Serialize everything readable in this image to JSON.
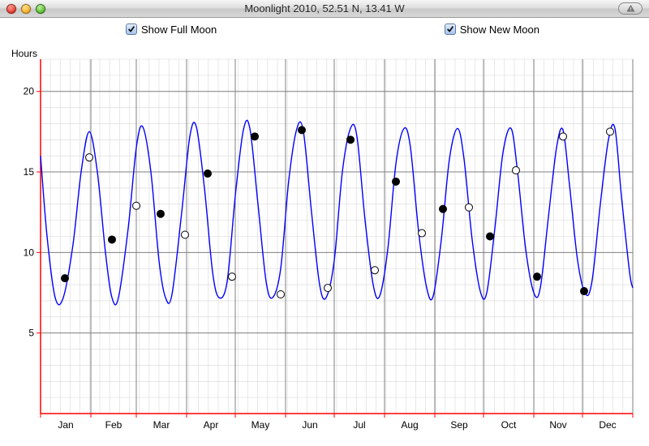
{
  "window": {
    "title": "Moonlight 2010,  52.51 N, 13.41 W"
  },
  "controls": {
    "full_moon": {
      "label": "Show Full Moon",
      "checked": true
    },
    "new_moon": {
      "label": "Show New Moon",
      "checked": true
    }
  },
  "chart": {
    "type": "line",
    "background_color": "#ffffff",
    "fine_grid_color": "#d8d8d8",
    "major_grid_color": "#808080",
    "axis_color": "#ff0000",
    "line_color": "#0000ff",
    "line_width": 1.4,
    "full_moon_marker": {
      "fill": "#000000",
      "stroke": "#000000",
      "r": 4.5
    },
    "new_moon_marker": {
      "fill": "#ffffff",
      "stroke": "#000000",
      "r": 4.5
    },
    "label_fontsize": 12,
    "label_color": "#000000",
    "y_axis_title": "Hours",
    "ylim": [
      0,
      22
    ],
    "y_ticks": [
      5,
      10,
      15,
      20
    ],
    "x_ticks_day": 15,
    "months": [
      "Jan",
      "Feb",
      "Mar",
      "Apr",
      "May",
      "Jun",
      "Jul",
      "Aug",
      "Sep",
      "Oct",
      "Nov",
      "Dec"
    ],
    "plot_left_day": 0,
    "plot_right_day": 365,
    "series": [
      {
        "d": 0,
        "h": 16.0
      },
      {
        "d": 4,
        "h": 11.0
      },
      {
        "d": 9,
        "h": 7.2
      },
      {
        "d": 14,
        "h": 7.2
      },
      {
        "d": 20,
        "h": 10.5
      },
      {
        "d": 25,
        "h": 15.0
      },
      {
        "d": 30,
        "h": 17.5
      },
      {
        "d": 35,
        "h": 15.0
      },
      {
        "d": 40,
        "h": 10.0
      },
      {
        "d": 44,
        "h": 7.2
      },
      {
        "d": 48,
        "h": 7.2
      },
      {
        "d": 54,
        "h": 11.5
      },
      {
        "d": 59,
        "h": 16.5
      },
      {
        "d": 63,
        "h": 17.8
      },
      {
        "d": 68,
        "h": 15.0
      },
      {
        "d": 73,
        "h": 9.5
      },
      {
        "d": 77,
        "h": 7.2
      },
      {
        "d": 81,
        "h": 7.4
      },
      {
        "d": 87,
        "h": 12.5
      },
      {
        "d": 92,
        "h": 17.2
      },
      {
        "d": 96,
        "h": 17.8
      },
      {
        "d": 101,
        "h": 14.0
      },
      {
        "d": 106,
        "h": 8.8
      },
      {
        "d": 110,
        "h": 7.2
      },
      {
        "d": 115,
        "h": 8.2
      },
      {
        "d": 120,
        "h": 13.5
      },
      {
        "d": 125,
        "h": 17.6
      },
      {
        "d": 129,
        "h": 17.7
      },
      {
        "d": 134,
        "h": 13.0
      },
      {
        "d": 139,
        "h": 8.2
      },
      {
        "d": 143,
        "h": 7.2
      },
      {
        "d": 148,
        "h": 9.0
      },
      {
        "d": 153,
        "h": 14.5
      },
      {
        "d": 158,
        "h": 17.7
      },
      {
        "d": 162,
        "h": 17.5
      },
      {
        "d": 167,
        "h": 12.5
      },
      {
        "d": 172,
        "h": 8.0
      },
      {
        "d": 176,
        "h": 7.2
      },
      {
        "d": 181,
        "h": 9.5
      },
      {
        "d": 186,
        "h": 15.0
      },
      {
        "d": 191,
        "h": 17.7
      },
      {
        "d": 195,
        "h": 17.2
      },
      {
        "d": 200,
        "h": 12.0
      },
      {
        "d": 205,
        "h": 8.0
      },
      {
        "d": 209,
        "h": 7.3
      },
      {
        "d": 214,
        "h": 10.2
      },
      {
        "d": 219,
        "h": 15.5
      },
      {
        "d": 224,
        "h": 17.7
      },
      {
        "d": 228,
        "h": 16.5
      },
      {
        "d": 233,
        "h": 11.3
      },
      {
        "d": 238,
        "h": 7.8
      },
      {
        "d": 242,
        "h": 7.3
      },
      {
        "d": 247,
        "h": 10.8
      },
      {
        "d": 252,
        "h": 15.8
      },
      {
        "d": 257,
        "h": 17.7
      },
      {
        "d": 261,
        "h": 15.8
      },
      {
        "d": 266,
        "h": 10.8
      },
      {
        "d": 271,
        "h": 7.6
      },
      {
        "d": 275,
        "h": 7.5
      },
      {
        "d": 280,
        "h": 11.5
      },
      {
        "d": 285,
        "h": 16.2
      },
      {
        "d": 290,
        "h": 17.7
      },
      {
        "d": 294,
        "h": 15.0
      },
      {
        "d": 299,
        "h": 10.2
      },
      {
        "d": 304,
        "h": 7.5
      },
      {
        "d": 308,
        "h": 7.8
      },
      {
        "d": 313,
        "h": 12.2
      },
      {
        "d": 318,
        "h": 16.5
      },
      {
        "d": 322,
        "h": 17.6
      },
      {
        "d": 326,
        "h": 14.2
      },
      {
        "d": 331,
        "h": 9.5
      },
      {
        "d": 336,
        "h": 7.4
      },
      {
        "d": 340,
        "h": 8.3
      },
      {
        "d": 345,
        "h": 13.0
      },
      {
        "d": 350,
        "h": 17.0
      },
      {
        "d": 354,
        "h": 17.7
      },
      {
        "d": 358,
        "h": 13.5
      },
      {
        "d": 363,
        "h": 8.8
      },
      {
        "d": 365,
        "h": 7.8
      }
    ],
    "full_moons": [
      {
        "d": 15,
        "h": 8.4
      },
      {
        "d": 44,
        "h": 10.8
      },
      {
        "d": 74,
        "h": 12.4
      },
      {
        "d": 103,
        "h": 14.9
      },
      {
        "d": 132,
        "h": 17.2
      },
      {
        "d": 161,
        "h": 17.6
      },
      {
        "d": 191,
        "h": 17.0
      },
      {
        "d": 219,
        "h": 14.4
      },
      {
        "d": 248,
        "h": 12.7
      },
      {
        "d": 277,
        "h": 11.0
      },
      {
        "d": 306,
        "h": 8.5
      },
      {
        "d": 335,
        "h": 7.6
      }
    ],
    "new_moons": [
      {
        "d": 30,
        "h": 15.9
      },
      {
        "d": 59,
        "h": 12.9
      },
      {
        "d": 89,
        "h": 11.1
      },
      {
        "d": 118,
        "h": 8.5
      },
      {
        "d": 148,
        "h": 7.4
      },
      {
        "d": 177,
        "h": 7.8
      },
      {
        "d": 206,
        "h": 8.9
      },
      {
        "d": 235,
        "h": 11.2
      },
      {
        "d": 264,
        "h": 12.8
      },
      {
        "d": 293,
        "h": 15.1
      },
      {
        "d": 322,
        "h": 17.2
      },
      {
        "d": 351,
        "h": 17.5
      }
    ]
  }
}
